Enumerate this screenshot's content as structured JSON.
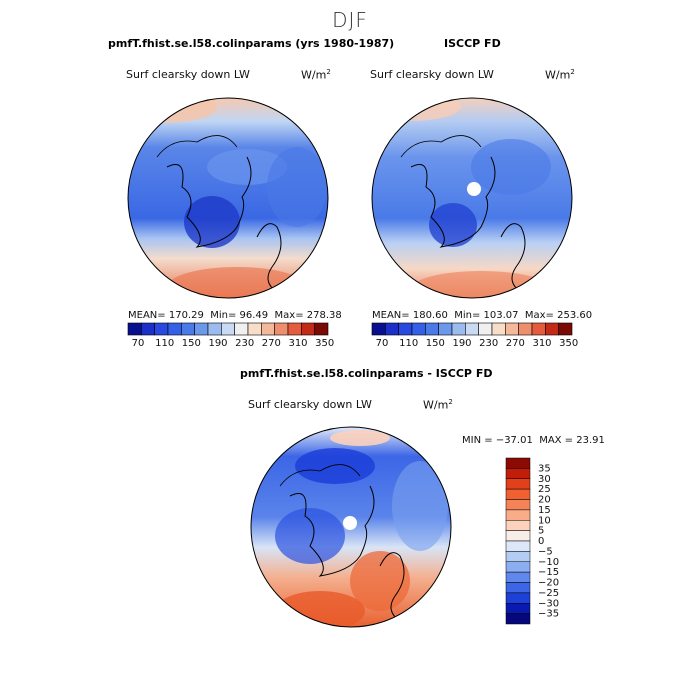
{
  "figure_title": "DJF",
  "panels": [
    {
      "title": "pmfT.fhist.se.l58.colinparams (yrs 1980-1987)",
      "variable": "Surf clearsky down LW",
      "units_main": "W/m",
      "units_sup": "2",
      "stats": {
        "mean_label": "MEAN=",
        "mean": "170.29",
        "min_label": "Min=",
        "min": "96.49",
        "max_label": "Max=",
        "max": "278.38"
      }
    },
    {
      "title": "ISCCP FD",
      "variable": "Surf clearsky down LW",
      "units_main": "W/m",
      "units_sup": "2",
      "stats": {
        "mean_label": "MEAN=",
        "mean": "180.60",
        "min_label": "Min=",
        "min": "103.07",
        "max_label": "Max=",
        "max": "253.60"
      }
    },
    {
      "title": "pmfT.fhist.se.l58.colinparams - ISCCP FD",
      "variable": "Surf clearsky down LW",
      "units_main": "W/m",
      "units_sup": "2",
      "stats": {
        "min_label": "MIN =",
        "min": "−37.01",
        "max_label": "MAX =",
        "max": "23.91"
      }
    }
  ],
  "chart_data": [
    {
      "type": "heatmap",
      "projection": "north-polar-stereographic",
      "title": "pmfT.fhist.se.l58.colinparams (yrs 1980-1987)",
      "variable": "Surf clearsky down LW",
      "levels": [
        "70",
        "90",
        "110",
        "130",
        "150",
        "170",
        "190",
        "210",
        "230",
        "250",
        "270",
        "290",
        "310",
        "330",
        "350"
      ],
      "colorbar_tick_labels": [
        "70",
        "110",
        "150",
        "190",
        "230",
        "270",
        "310",
        "350"
      ],
      "colors": [
        "#08108f",
        "#1a30c8",
        "#2848e0",
        "#3460e8",
        "#4a7ae8",
        "#6c98ec",
        "#9cbcf0",
        "#c8daf4",
        "#f0f0f0",
        "#f8ddc8",
        "#f4b89a",
        "#ee8e6c",
        "#e45c3c",
        "#c42a18",
        "#7a0a04"
      ]
    },
    {
      "type": "heatmap",
      "projection": "north-polar-stereographic",
      "title": "ISCCP FD",
      "variable": "Surf clearsky down LW",
      "levels": [
        "70",
        "90",
        "110",
        "130",
        "150",
        "170",
        "190",
        "210",
        "230",
        "250",
        "270",
        "290",
        "310",
        "330",
        "350"
      ],
      "colorbar_tick_labels": [
        "70",
        "110",
        "150",
        "190",
        "230",
        "270",
        "310",
        "350"
      ],
      "colors": [
        "#08108f",
        "#1a30c8",
        "#2848e0",
        "#3460e8",
        "#4a7ae8",
        "#6c98ec",
        "#9cbcf0",
        "#c8daf4",
        "#f0f0f0",
        "#f8ddc8",
        "#f4b89a",
        "#ee8e6c",
        "#e45c3c",
        "#c42a18",
        "#7a0a04"
      ]
    },
    {
      "type": "heatmap",
      "projection": "north-polar-stereographic",
      "title": "pmfT.fhist.se.l58.colinparams - ISCCP FD",
      "variable": "Surf clearsky down LW",
      "levels": [
        "35",
        "30",
        "25",
        "20",
        "15",
        "10",
        "5",
        "0",
        "−5",
        "−10",
        "−15",
        "−20",
        "−25",
        "−30",
        "−35"
      ],
      "colors": [
        "#8c0a04",
        "#c01e0a",
        "#e0401a",
        "#f06030",
        "#f48458",
        "#f8ac88",
        "#fcd2bc",
        "#f8eee8",
        "#dce8f8",
        "#b4ccf4",
        "#8aaef0",
        "#6088ec",
        "#3c66e6",
        "#1c40d8",
        "#0a1ab0",
        "#04087a"
      ]
    }
  ]
}
